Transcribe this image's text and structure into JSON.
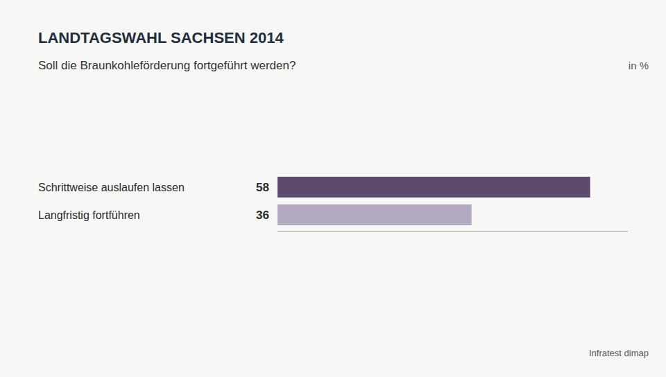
{
  "chart_data": {
    "type": "bar",
    "orientation": "horizontal",
    "title": "LANDTAGSWAHL SACHSEN 2014",
    "subtitle": "Soll die Braunkohleförderung fortgeführt werden?",
    "xlabel": "in %",
    "categories": [
      "Schrittweise auslaufen lassen",
      "Langfristig fortführen"
    ],
    "values": [
      58,
      36
    ],
    "colors": [
      "#5e4a6e",
      "#b3aabf"
    ],
    "xlim": [
      0,
      65
    ],
    "data_labels": true,
    "tick_labels": false,
    "grid": false,
    "annotations": [
      "Infratest dimap"
    ]
  }
}
